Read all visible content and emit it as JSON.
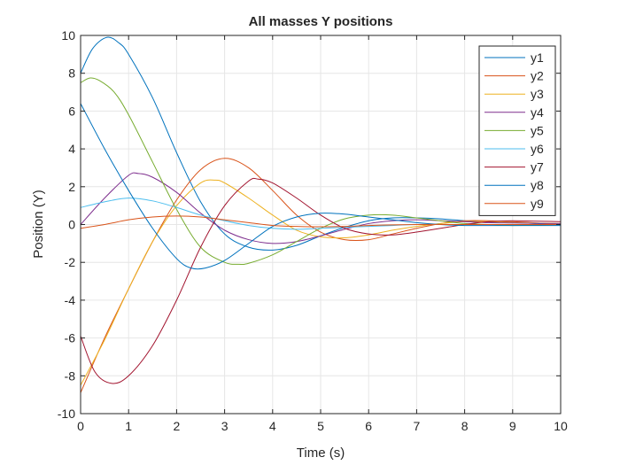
{
  "chart_data": {
    "type": "line",
    "title": "All masses Y positions",
    "xlabel": "Time (s)",
    "ylabel": "Position (Y)",
    "xlim": [
      0,
      10
    ],
    "ylim": [
      -10,
      10
    ],
    "xticks": [
      0,
      1,
      2,
      3,
      4,
      5,
      6,
      7,
      8,
      9,
      10
    ],
    "yticks": [
      -10,
      -8,
      -6,
      -4,
      -2,
      0,
      2,
      4,
      6,
      8,
      10
    ],
    "grid": true,
    "legend_position": "top-right",
    "series": [
      {
        "name": "y1",
        "color": "#0072BD",
        "points": [
          [
            0,
            8
          ],
          [
            0.25,
            9.3
          ],
          [
            0.55,
            9.9
          ],
          [
            0.8,
            9.6
          ],
          [
            1,
            9.0
          ],
          [
            1.5,
            6.7
          ],
          [
            2,
            3.8
          ],
          [
            2.5,
            1.2
          ],
          [
            3,
            -0.5
          ],
          [
            3.5,
            -1.2
          ],
          [
            4,
            -1.35
          ],
          [
            4.5,
            -1.1
          ],
          [
            5,
            -0.6
          ],
          [
            5.5,
            -0.15
          ],
          [
            6,
            0.2
          ],
          [
            6.5,
            0.35
          ],
          [
            7,
            0.35
          ],
          [
            7.5,
            0.3
          ],
          [
            8,
            0.2
          ],
          [
            8.5,
            0.12
          ],
          [
            9,
            0.1
          ],
          [
            9.5,
            0.05
          ],
          [
            10,
            0.0
          ]
        ]
      },
      {
        "name": "y2",
        "color": "#D95319",
        "points": [
          [
            0,
            -8.9
          ],
          [
            0.5,
            -6.0
          ],
          [
            1,
            -3.4
          ],
          [
            1.5,
            -0.9
          ],
          [
            2,
            1.3
          ],
          [
            2.5,
            2.9
          ],
          [
            3,
            3.5
          ],
          [
            3.5,
            3.0
          ],
          [
            4,
            1.8
          ],
          [
            4.5,
            0.5
          ],
          [
            5,
            -0.4
          ],
          [
            5.5,
            -0.8
          ],
          [
            6,
            -0.8
          ],
          [
            6.5,
            -0.5
          ],
          [
            7,
            -0.2
          ],
          [
            7.5,
            0.05
          ],
          [
            8,
            0.2
          ],
          [
            8.5,
            0.2
          ],
          [
            9,
            0.15
          ],
          [
            9.5,
            0.08
          ],
          [
            10,
            0.0
          ]
        ]
      },
      {
        "name": "y3",
        "color": "#EDB120",
        "points": [
          [
            0,
            -8.5
          ],
          [
            0.5,
            -6.1
          ],
          [
            1,
            -3.4
          ],
          [
            1.5,
            -0.9
          ],
          [
            2,
            1.0
          ],
          [
            2.5,
            2.2
          ],
          [
            2.8,
            2.35
          ],
          [
            3,
            2.2
          ],
          [
            3.5,
            1.4
          ],
          [
            4,
            0.5
          ],
          [
            4.5,
            -0.3
          ],
          [
            5,
            -0.65
          ],
          [
            5.5,
            -0.7
          ],
          [
            6,
            -0.55
          ],
          [
            6.5,
            -0.3
          ],
          [
            7,
            -0.1
          ],
          [
            7.5,
            0.05
          ],
          [
            8,
            0.15
          ],
          [
            8.5,
            0.15
          ],
          [
            9,
            0.1
          ],
          [
            10,
            0.05
          ]
        ]
      },
      {
        "name": "y4",
        "color": "#7E2F8E",
        "points": [
          [
            0,
            0
          ],
          [
            0.5,
            1.4
          ],
          [
            1,
            2.6
          ],
          [
            1.2,
            2.7
          ],
          [
            1.5,
            2.5
          ],
          [
            2,
            1.7
          ],
          [
            2.5,
            0.6
          ],
          [
            3,
            -0.3
          ],
          [
            3.5,
            -0.8
          ],
          [
            4,
            -1.0
          ],
          [
            4.5,
            -0.9
          ],
          [
            5,
            -0.6
          ],
          [
            5.5,
            -0.25
          ],
          [
            6,
            0.05
          ],
          [
            6.5,
            0.2
          ],
          [
            7,
            0.25
          ],
          [
            7.5,
            0.2
          ],
          [
            8,
            0.15
          ],
          [
            8.5,
            0.1
          ],
          [
            9,
            0.08
          ],
          [
            10,
            0.05
          ]
        ]
      },
      {
        "name": "y5",
        "color": "#77AC30",
        "points": [
          [
            0,
            7.5
          ],
          [
            0.2,
            7.75
          ],
          [
            0.4,
            7.6
          ],
          [
            0.7,
            7.0
          ],
          [
            1,
            5.8
          ],
          [
            1.5,
            3.3
          ],
          [
            2,
            0.8
          ],
          [
            2.5,
            -1.2
          ],
          [
            3,
            -2.0
          ],
          [
            3.3,
            -2.1
          ],
          [
            3.5,
            -2.05
          ],
          [
            4,
            -1.6
          ],
          [
            4.5,
            -0.9
          ],
          [
            5,
            -0.2
          ],
          [
            5.5,
            0.3
          ],
          [
            6,
            0.5
          ],
          [
            6.5,
            0.5
          ],
          [
            7,
            0.35
          ],
          [
            7.5,
            0.2
          ],
          [
            8,
            0.05
          ],
          [
            8.5,
            0.0
          ],
          [
            9,
            -0.05
          ],
          [
            10,
            0.0
          ]
        ]
      },
      {
        "name": "y6",
        "color": "#4DBEEE",
        "points": [
          [
            0,
            0.9
          ],
          [
            0.5,
            1.2
          ],
          [
            1,
            1.4
          ],
          [
            1.5,
            1.25
          ],
          [
            2,
            0.9
          ],
          [
            2.5,
            0.5
          ],
          [
            3,
            0.2
          ],
          [
            3.5,
            -0.05
          ],
          [
            4,
            -0.2
          ],
          [
            4.5,
            -0.25
          ],
          [
            5,
            -0.2
          ],
          [
            5.5,
            -0.15
          ],
          [
            6,
            -0.1
          ],
          [
            6.5,
            -0.05
          ],
          [
            7,
            0.0
          ],
          [
            8,
            0.0
          ],
          [
            9,
            0.0
          ],
          [
            10,
            0.0
          ]
        ]
      },
      {
        "name": "y7",
        "color": "#A2142F",
        "points": [
          [
            0,
            -5.9
          ],
          [
            0.3,
            -7.8
          ],
          [
            0.65,
            -8.4
          ],
          [
            1,
            -8.0
          ],
          [
            1.5,
            -6.4
          ],
          [
            2,
            -4.0
          ],
          [
            2.5,
            -1.2
          ],
          [
            3,
            1.0
          ],
          [
            3.5,
            2.3
          ],
          [
            3.7,
            2.4
          ],
          [
            4,
            2.2
          ],
          [
            4.5,
            1.4
          ],
          [
            5,
            0.5
          ],
          [
            5.5,
            -0.2
          ],
          [
            6,
            -0.5
          ],
          [
            6.5,
            -0.55
          ],
          [
            7,
            -0.4
          ],
          [
            7.5,
            -0.2
          ],
          [
            8,
            0.0
          ],
          [
            8.5,
            0.15
          ],
          [
            9,
            0.2
          ],
          [
            10,
            0.15
          ]
        ]
      },
      {
        "name": "y8",
        "color": "#0072BD",
        "points": [
          [
            0,
            6.4
          ],
          [
            0.5,
            4.0
          ],
          [
            1,
            1.8
          ],
          [
            1.5,
            -0.2
          ],
          [
            2,
            -1.8
          ],
          [
            2.3,
            -2.3
          ],
          [
            2.6,
            -2.3
          ],
          [
            3,
            -1.9
          ],
          [
            3.5,
            -1.0
          ],
          [
            4,
            -0.1
          ],
          [
            4.5,
            0.4
          ],
          [
            5,
            0.6
          ],
          [
            5.5,
            0.55
          ],
          [
            6,
            0.4
          ],
          [
            6.5,
            0.25
          ],
          [
            7,
            0.1
          ],
          [
            7.5,
            0.0
          ],
          [
            8,
            -0.05
          ],
          [
            8.5,
            -0.05
          ],
          [
            9,
            -0.05
          ],
          [
            10,
            -0.05
          ]
        ]
      },
      {
        "name": "y9",
        "color": "#D95319",
        "points": [
          [
            0,
            -0.2
          ],
          [
            0.5,
            0.0
          ],
          [
            1,
            0.25
          ],
          [
            1.5,
            0.4
          ],
          [
            2,
            0.45
          ],
          [
            2.5,
            0.4
          ],
          [
            3,
            0.25
          ],
          [
            3.5,
            0.1
          ],
          [
            4,
            -0.05
          ],
          [
            4.5,
            -0.1
          ],
          [
            5,
            -0.12
          ],
          [
            5.5,
            -0.1
          ],
          [
            6,
            -0.05
          ],
          [
            7,
            0.0
          ],
          [
            8,
            0.0
          ],
          [
            9,
            0.0
          ],
          [
            10,
            0.0
          ]
        ]
      }
    ]
  }
}
